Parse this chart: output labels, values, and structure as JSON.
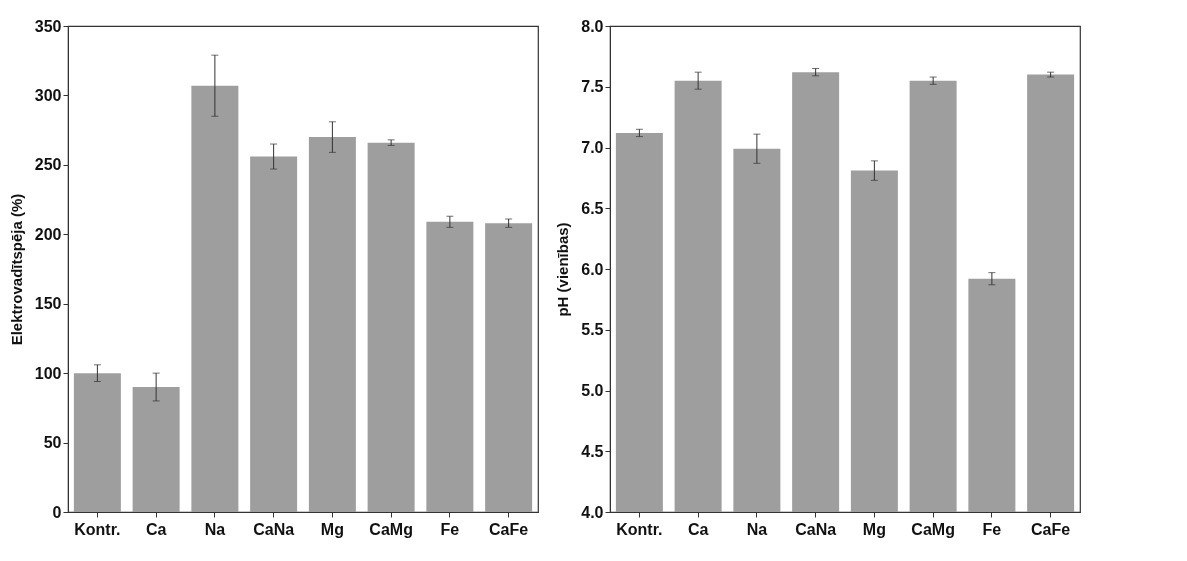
{
  "chart_data": [
    {
      "type": "bar",
      "ylabel": "Elektrovadītspēja (%)",
      "categories": [
        "Kontr.",
        "Ca",
        "Na",
        "CaNa",
        "Mg",
        "CaMg",
        "Fe",
        "CaFe"
      ],
      "values": [
        100,
        90,
        307,
        256,
        270,
        266,
        209,
        208
      ],
      "color": "#9e9e9e",
      "errors": [
        6,
        10,
        22,
        9,
        11,
        2,
        4,
        3
      ],
      "ylim": [
        0,
        350
      ],
      "yticks": [
        0,
        50,
        100,
        150,
        200,
        250,
        300,
        350
      ],
      "grid": false
    },
    {
      "type": "bar",
      "ylabel": "pH (vienības)",
      "categories": [
        "Kontr.",
        "Ca",
        "Na",
        "CaNa",
        "Mg",
        "CaMg",
        "Fe",
        "CaFe"
      ],
      "values": [
        7.12,
        7.55,
        6.99,
        7.62,
        6.81,
        7.55,
        5.92,
        7.6
      ],
      "color": "#9e9e9e",
      "errors": [
        0.03,
        0.07,
        0.12,
        0.03,
        0.08,
        0.03,
        0.05,
        0.02
      ],
      "ylim": [
        4,
        8
      ],
      "yticks": [
        {
          "value": 4,
          "label": "4.0"
        },
        {
          "value": 4.5,
          "label": "4.5"
        },
        {
          "value": 5,
          "label": "5.0"
        },
        {
          "value": 5.5,
          "label": "5.5"
        },
        {
          "value": 6,
          "label": "6.0"
        },
        {
          "value": 6.5,
          "label": "6.5"
        },
        {
          "value": 7,
          "label": "7.0"
        },
        {
          "value": 7.5,
          "label": "7.5"
        },
        {
          "value": 8,
          "label": "8.0"
        }
      ],
      "grid": false
    }
  ]
}
